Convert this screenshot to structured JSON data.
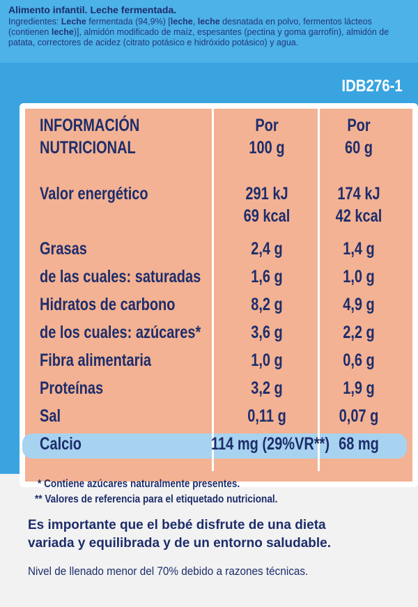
{
  "header": {
    "title": "Alimento infantil. Leche fermentada.",
    "ingredients": [
      {
        "text": "Ingredientes: ",
        "bold": false
      },
      {
        "text": "Leche",
        "bold": true
      },
      {
        "text": " fermentada (94,9%) [",
        "bold": false
      },
      {
        "text": "leche",
        "bold": true
      },
      {
        "text": ", ",
        "bold": false
      },
      {
        "text": "leche",
        "bold": true
      },
      {
        "text": " desnatada en polvo, fermentos lácteos (contienen ",
        "bold": false
      },
      {
        "text": "leche",
        "bold": true
      },
      {
        "text": ")], almidón modificado de maíz, espesantes (pectina y goma garrofín), almidón de patata, correctores de acidez (citrato potásico e hidróxido potásico) y agua.",
        "bold": false
      }
    ],
    "code": "IDB276-1"
  },
  "table": {
    "header": [
      [
        "INFORMACIÓN",
        "NUTRICIONAL"
      ],
      [
        "Por",
        "100 g"
      ],
      [
        "Por",
        "60 g"
      ]
    ],
    "rows": [
      [
        [
          "Valor energético"
        ],
        [
          "291 kJ",
          "69 kcal"
        ],
        [
          "174 kJ",
          "42 kcal"
        ]
      ],
      [
        [
          "Grasas"
        ],
        [
          "2,4 g"
        ],
        [
          "1,4 g"
        ]
      ],
      [
        [
          "de las cuales: saturadas"
        ],
        [
          "1,6 g"
        ],
        [
          "1,0 g"
        ]
      ],
      [
        [
          "Hidratos de carbono"
        ],
        [
          "8,2 g"
        ],
        [
          "4,9 g"
        ]
      ],
      [
        [
          "de los cuales: azúcares*"
        ],
        [
          "3,6 g"
        ],
        [
          "2,2 g"
        ]
      ],
      [
        [
          "Fibra alimentaria"
        ],
        [
          "1,0 g"
        ],
        [
          "0,6 g"
        ]
      ],
      [
        [
          "Proteínas"
        ],
        [
          "3,2 g"
        ],
        [
          "1,9 g"
        ]
      ],
      [
        [
          "Sal"
        ],
        [
          "0,11 g"
        ],
        [
          "0,07 g"
        ]
      ],
      [
        [
          "Calcio"
        ],
        [
          "114 mg (29%VR**)"
        ],
        [
          "68 mg"
        ]
      ]
    ]
  },
  "footnotes": [
    "* Contiene azúcares naturalmente presentes.",
    "** Valores de referencia para el etiquetado nutricional."
  ],
  "message": [
    "Es importante que el bebé disfrute de una dieta",
    "variada y equilibrada y de un entorno saludable."
  ],
  "fill_note": "Nivel de llenado menor del 70% debido a razones técnicas."
}
